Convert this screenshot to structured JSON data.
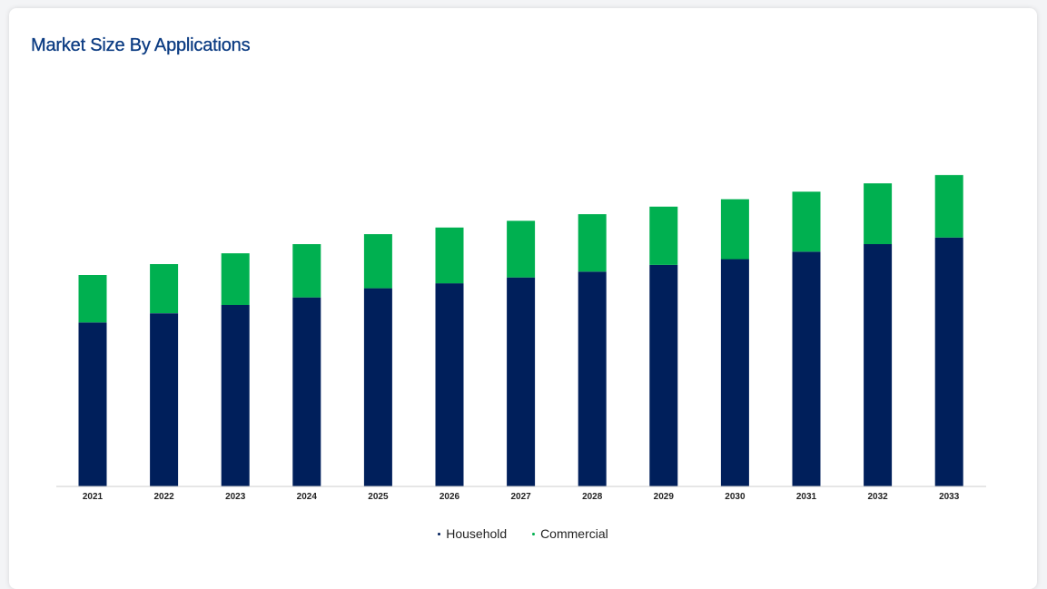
{
  "page": {
    "title": "Market Size By Applications"
  },
  "colors": {
    "household": "#001f5b",
    "commercial": "#00b050",
    "axis": "#cccccc"
  },
  "chart_data": {
    "type": "bar",
    "stacked": true,
    "title": "Market Size By Applications",
    "xlabel": "",
    "ylabel": "",
    "categories": [
      "2021",
      "2022",
      "2023",
      "2024",
      "2025",
      "2026",
      "2027",
      "2028",
      "2029",
      "2030",
      "2031",
      "2032",
      "2033"
    ],
    "series": [
      {
        "name": "Household",
        "color": "#001f5b",
        "values": [
          197,
          208,
          218,
          227,
          238,
          244,
          251,
          258,
          266,
          273,
          282,
          291,
          299
        ]
      },
      {
        "name": "Commercial",
        "color": "#00b050",
        "values": [
          57,
          59,
          62,
          64,
          65,
          67,
          68,
          69,
          70,
          72,
          72,
          73,
          75
        ]
      }
    ],
    "ylim": [
      0,
      400
    ],
    "grid": false,
    "y_axis_visible": false,
    "legend_position": "bottom"
  }
}
